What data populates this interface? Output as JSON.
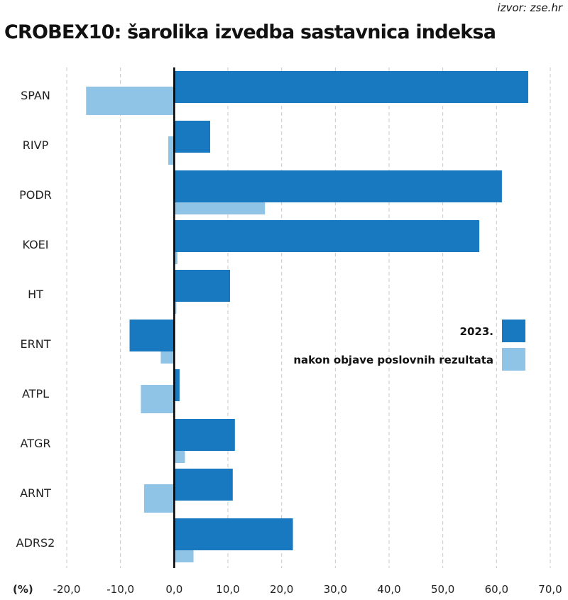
{
  "chart_data": {
    "type": "bar",
    "orientation": "horizontal",
    "title": "CROBEX10: šarolika izvedba sastavnica indeksa",
    "source": "izvor: zse.hr",
    "xlabel": "(%)",
    "xlim": [
      -20,
      70
    ],
    "xticks": [
      "-20,0",
      "-10,0",
      "0,0",
      "10,0",
      "20,0",
      "30,0",
      "40,0",
      "50,0",
      "60,0",
      "70,0"
    ],
    "xtick_values": [
      -20,
      -10,
      0,
      10,
      20,
      30,
      40,
      50,
      60,
      70
    ],
    "grid": true,
    "legend_position": "right",
    "categories": [
      "SPAN",
      "RIVP",
      "PODR",
      "KOEI",
      "HT",
      "ERNT",
      "ATPL",
      "ATGR",
      "ARNT",
      "ADRS2"
    ],
    "series": [
      {
        "name": "2023.",
        "color": "#1878c0",
        "values": [
          65.9,
          6.7,
          61.0,
          56.8,
          10.4,
          -8.3,
          1.0,
          11.3,
          10.9,
          22.1
        ]
      },
      {
        "name": "nakon objave poslovnih rezultata",
        "color": "#8fc4e6",
        "values": [
          -16.4,
          -1.1,
          16.9,
          0.6,
          0.4,
          -2.5,
          -6.2,
          2.0,
          -5.6,
          3.6
        ]
      }
    ]
  }
}
